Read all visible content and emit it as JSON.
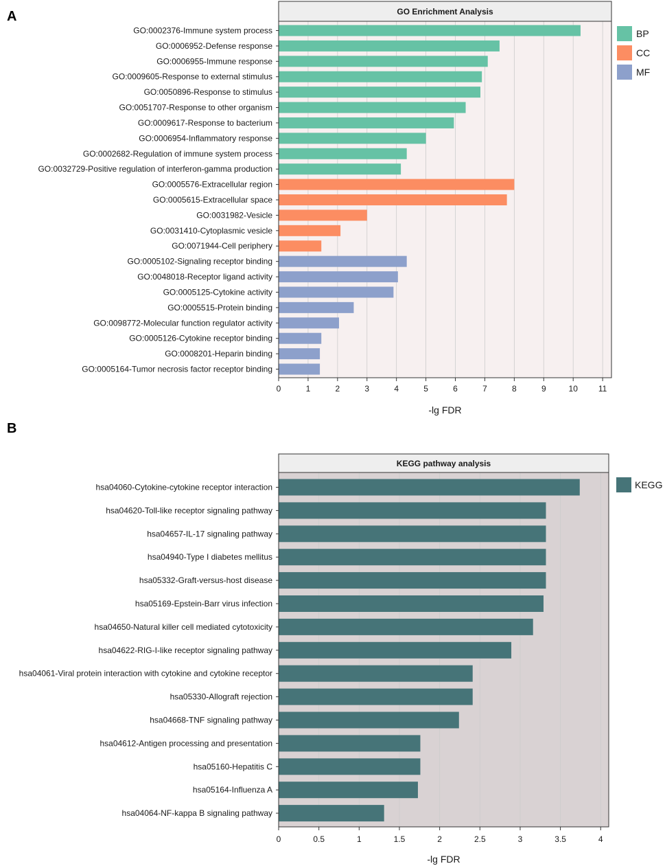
{
  "figure": {
    "panel_a_label": "A",
    "panel_b_label": "B"
  },
  "colors": {
    "BP": "#66c2a5",
    "CC": "#fc8d62",
    "MF": "#8da0cb",
    "KEGG": "#467478",
    "go_panel_bg": "#f7f0f0",
    "kegg_panel_bg": "#d9d2d3",
    "strip_bg": "#eeeeee",
    "grid": "#cccccc",
    "axis": "#333333",
    "text": "#1a1a1a"
  },
  "chart_data": [
    {
      "id": "go",
      "type": "bar",
      "orientation": "horizontal",
      "title": "GO Enrichment Analysis",
      "xlabel": "-lg FDR",
      "ylabel": "",
      "xlim": [
        0,
        11.3
      ],
      "xticks": [
        0,
        1,
        2,
        3,
        4,
        5,
        6,
        7,
        8,
        9,
        10,
        11
      ],
      "grid": true,
      "legend_position": "right",
      "legend": [
        "BP",
        "CC",
        "MF"
      ],
      "categories": [
        "GO:0002376-Immune system process",
        "GO:0006952-Defense response",
        "GO:0006955-Immune response",
        "GO:0009605-Response to external stimulus",
        "GO:0050896-Response to stimulus",
        "GO:0051707-Response to other organism",
        "GO:0009617-Response to bacterium",
        "GO:0006954-Inflammatory response",
        "GO:0002682-Regulation of immune system process",
        "GO:0032729-Positive regulation of interferon-gamma production",
        "GO:0005576-Extracellular region",
        "GO:0005615-Extracellular space",
        "GO:0031982-Vesicle",
        "GO:0031410-Cytoplasmic vesicle",
        "GO:0071944-Cell periphery",
        "GO:0005102-Signaling receptor binding",
        "GO:0048018-Receptor ligand activity",
        "GO:0005125-Cytokine activity",
        "GO:0005515-Protein binding",
        "GO:0098772-Molecular function regulator activity",
        "GO:0005126-Cytokine receptor binding",
        "GO:0008201-Heparin binding",
        "GO:0005164-Tumor necrosis factor receptor binding"
      ],
      "values": [
        10.25,
        7.5,
        7.1,
        6.9,
        6.85,
        6.35,
        5.95,
        5.0,
        4.35,
        4.15,
        8.0,
        7.75,
        3.0,
        2.1,
        1.45,
        4.35,
        4.05,
        3.9,
        2.55,
        2.05,
        1.45,
        1.4,
        1.4
      ],
      "groups": [
        "BP",
        "BP",
        "BP",
        "BP",
        "BP",
        "BP",
        "BP",
        "BP",
        "BP",
        "BP",
        "CC",
        "CC",
        "CC",
        "CC",
        "CC",
        "MF",
        "MF",
        "MF",
        "MF",
        "MF",
        "MF",
        "MF",
        "MF"
      ]
    },
    {
      "id": "kegg",
      "type": "bar",
      "orientation": "horizontal",
      "title": "KEGG pathway analysis",
      "xlabel": "-lg FDR",
      "ylabel": "",
      "xlim": [
        0,
        4.1
      ],
      "xticks": [
        "0",
        "0.5",
        "1",
        "1.5",
        "2",
        "2.5",
        "3",
        "3.5",
        "4"
      ],
      "grid": true,
      "legend_position": "right",
      "legend": [
        "KEGG"
      ],
      "categories": [
        "hsa04060-Cytokine-cytokine receptor interaction",
        "hsa04620-Toll-like receptor signaling pathway",
        "hsa04657-IL-17 signaling pathway",
        "hsa04940-Type I diabetes mellitus",
        "hsa05332-Graft-versus-host disease",
        "hsa05169-Epstein-Barr virus infection",
        "hsa04650-Natural killer cell mediated cytotoxicity",
        "hsa04622-RIG-I-like receptor signaling pathway",
        "hsa04061-Viral protein interaction with cytokine and cytokine receptor",
        "hsa05330-Allograft rejection",
        "hsa04668-TNF signaling pathway",
        "hsa04612-Antigen processing and presentation",
        "hsa05160-Hepatitis C",
        "hsa05164-Influenza A",
        "hsa04064-NF-kappa B signaling pathway"
      ],
      "values": [
        3.74,
        3.32,
        3.32,
        3.32,
        3.32,
        3.29,
        3.16,
        2.89,
        2.41,
        2.41,
        2.24,
        1.76,
        1.76,
        1.73,
        1.31
      ],
      "groups": [
        "KEGG",
        "KEGG",
        "KEGG",
        "KEGG",
        "KEGG",
        "KEGG",
        "KEGG",
        "KEGG",
        "KEGG",
        "KEGG",
        "KEGG",
        "KEGG",
        "KEGG",
        "KEGG",
        "KEGG"
      ]
    }
  ]
}
